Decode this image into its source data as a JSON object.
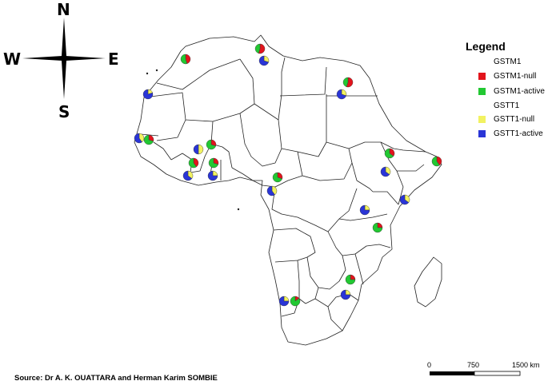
{
  "compass": {
    "north": "N",
    "south": "S",
    "east": "E",
    "west": "W"
  },
  "legend": {
    "title": "Legend",
    "items": [
      {
        "label": "GSTM1",
        "color": ""
      },
      {
        "label": "GSTM1-null",
        "color": "#e2141c"
      },
      {
        "label": "GSTM1-active",
        "color": "#22c832"
      },
      {
        "label": "GSTT1",
        "color": ""
      },
      {
        "label": "GSTT1-null",
        "color": "#f2f261"
      },
      {
        "label": "GSTT1-active",
        "color": "#2a35d6"
      }
    ]
  },
  "scale_bar": {
    "ticks": [
      "0",
      "750",
      "1500 km"
    ]
  },
  "source": "Source: Dr A. K. OUATTARA and Herman Karim SOMBIE",
  "colors": {
    "gstm1_null": "#e2141c",
    "gstm1_active": "#22c832",
    "gstt1_null": "#f2f261",
    "gstt1_active": "#2a35d6",
    "map_fill": "#ffffff",
    "map_stroke": "#222222"
  },
  "pies": [
    {
      "id": "morocco-gstm1",
      "gene": "GSTM1",
      "null_fraction": 0.45
    },
    {
      "id": "tunisia-gstm1",
      "gene": "GSTM1",
      "null_fraction": 0.55
    },
    {
      "id": "tunisia-gstt1",
      "gene": "GSTT1",
      "null_fraction": 0.3
    },
    {
      "id": "egypt-gstm1",
      "gene": "GSTM1",
      "null_fraction": 0.55
    },
    {
      "id": "egypt-gstt1",
      "gene": "GSTT1",
      "null_fraction": 0.3
    },
    {
      "id": "mauritania-gstt1",
      "gene": "GSTT1",
      "null_fraction": 0.2
    },
    {
      "id": "senegal-gstt1",
      "gene": "GSTT1",
      "null_fraction": 0.4
    },
    {
      "id": "senegal-gstm1",
      "gene": "GSTM1",
      "null_fraction": 0.3
    },
    {
      "id": "burkina-gstt1",
      "gene": "GSTT1",
      "null_fraction": 0.5
    },
    {
      "id": "burkina-gstm1",
      "gene": "GSTM1",
      "null_fraction": 0.3
    },
    {
      "id": "ivorycoast-gstm1",
      "gene": "GSTM1",
      "null_fraction": 0.4
    },
    {
      "id": "ivorycoast-gstt1",
      "gene": "GSTT1",
      "null_fraction": 0.35
    },
    {
      "id": "ghana-gstm1",
      "gene": "GSTM1",
      "null_fraction": 0.3
    },
    {
      "id": "ghana-gstt1",
      "gene": "GSTT1",
      "null_fraction": 0.25
    },
    {
      "id": "cameroon-gstm1",
      "gene": "GSTM1",
      "null_fraction": 0.3
    },
    {
      "id": "cameroon-gstt1",
      "gene": "GSTT1",
      "null_fraction": 0.4
    },
    {
      "id": "ethiopia-gstm1",
      "gene": "GSTM1",
      "null_fraction": 0.35
    },
    {
      "id": "ethiopia-gstt1",
      "gene": "GSTT1",
      "null_fraction": 0.35
    },
    {
      "id": "somalia-gstm1",
      "gene": "GSTM1",
      "null_fraction": 0.4
    },
    {
      "id": "kenya-gstt1",
      "gene": "GSTT1",
      "null_fraction": 0.35
    },
    {
      "id": "tanzania-gstt1",
      "gene": "GSTT1",
      "null_fraction": 0.25
    },
    {
      "id": "tanzania-gstm1",
      "gene": "GSTM1",
      "null_fraction": 0.25
    },
    {
      "id": "zimbabwe-gstm1",
      "gene": "GSTM1",
      "null_fraction": 0.25
    },
    {
      "id": "zimbabwe-gstt1",
      "gene": "GSTT1",
      "null_fraction": 0.25
    },
    {
      "id": "namibia-gstt1",
      "gene": "GSTT1",
      "null_fraction": 0.25
    },
    {
      "id": "namibia-gstm1",
      "gene": "GSTM1",
      "null_fraction": 0.15
    }
  ]
}
